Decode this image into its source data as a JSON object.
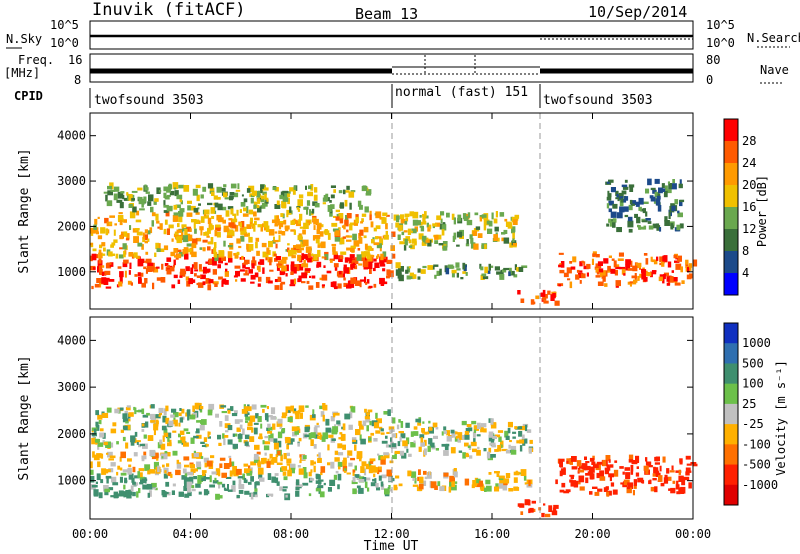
{
  "header": {
    "station": "Inuvik (fitACF)",
    "beam": "Beam 13",
    "date": "10/Sep/2014"
  },
  "nsky_panel": {
    "left_label": "N.Sky",
    "right_label": "N.Search",
    "left_ticks": [
      "10^5",
      "10^0"
    ],
    "right_ticks": [
      "10^5",
      "10^0"
    ]
  },
  "freq_panel": {
    "left_label_top": "Freq.",
    "left_label_bottom": "[MHz]",
    "left_ticks": [
      "16",
      "8"
    ],
    "right_ticks": [
      "80",
      "0"
    ],
    "right_label": "Nave"
  },
  "cpid": {
    "label": "CPID",
    "segments": [
      {
        "start": 0,
        "end": 12,
        "label": "twofsound 3503"
      },
      {
        "start": 12,
        "end": 18,
        "label": "normal (fast) 151"
      },
      {
        "start": 18,
        "end": 24,
        "label": "twofsound 3503"
      }
    ]
  },
  "x_axis": {
    "label": "Time UT",
    "ticks": [
      "00:00",
      "04:00",
      "08:00",
      "12:00",
      "16:00",
      "20:00",
      "00:00"
    ],
    "range_hours": [
      0,
      24
    ]
  },
  "chart_data": [
    {
      "type": "heatmap",
      "ylabel": "Slant Range [km]",
      "yticks": [
        "1000",
        "2000",
        "3000",
        "4000"
      ],
      "ylim": [
        180,
        4500
      ],
      "colorbar_label": "Power [dB]",
      "colorbar_ticks": [
        "28",
        "24",
        "20",
        "16",
        "12",
        "8",
        "4"
      ],
      "colorbar_colors": [
        "#ff0000",
        "#ff5a00",
        "#ff9a00",
        "#f0c000",
        "#6aa84f",
        "#3a6f3a",
        "#1c4a8a",
        "#0000ff"
      ],
      "clusters": [
        {
          "t0": 0.0,
          "t1": 12.0,
          "r0": 650,
          "r1": 1350,
          "value": 26
        },
        {
          "t0": 0.0,
          "t1": 12.0,
          "r0": 1300,
          "r1": 2300,
          "value": 18
        },
        {
          "t0": 0.5,
          "t1": 11.0,
          "r0": 2300,
          "r1": 2900,
          "value": 12
        },
        {
          "t0": 12.0,
          "t1": 17.5,
          "r0": 850,
          "r1": 1150,
          "value": 10
        },
        {
          "t0": 12.0,
          "t1": 17.0,
          "r0": 1500,
          "r1": 2300,
          "value": 14
        },
        {
          "t0": 17.0,
          "t1": 18.5,
          "r0": 250,
          "r1": 550,
          "value": 26
        },
        {
          "t0": 18.5,
          "t1": 24.0,
          "r0": 700,
          "r1": 1400,
          "value": 24
        },
        {
          "t0": 20.5,
          "t1": 23.5,
          "r0": 1900,
          "r1": 3000,
          "value": 8
        }
      ]
    },
    {
      "type": "heatmap",
      "ylabel": "Slant Range [km]",
      "yticks": [
        "1000",
        "2000",
        "3000",
        "4000"
      ],
      "ylim": [
        180,
        4500
      ],
      "colorbar_label": "Velocity [m s⁻¹]",
      "colorbar_ticks": [
        "1000",
        "500",
        "100",
        "25",
        "-25",
        "-100",
        "-500",
        "-1000"
      ],
      "colorbar_colors": [
        "#1030c0",
        "#2f6fb0",
        "#3f8f6f",
        "#6cc04a",
        "#c0c0c0",
        "#ffb000",
        "#ff7000",
        "#ff2000",
        "#e00000"
      ],
      "clusters": [
        {
          "t0": 0.0,
          "t1": 12.0,
          "r0": 650,
          "r1": 1100,
          "value": 100
        },
        {
          "t0": 0.0,
          "t1": 12.0,
          "r0": 1100,
          "r1": 1600,
          "value": -100
        },
        {
          "t0": 0.0,
          "t1": 12.0,
          "r0": 1700,
          "r1": 2600,
          "value": 0
        },
        {
          "t0": 12.0,
          "t1": 17.5,
          "r0": 800,
          "r1": 1200,
          "value": -100
        },
        {
          "t0": 12.0,
          "t1": 17.5,
          "r0": 1500,
          "r1": 2300,
          "value": 0
        },
        {
          "t0": 17.0,
          "t1": 18.5,
          "r0": 250,
          "r1": 550,
          "value": -500
        },
        {
          "t0": 18.5,
          "t1": 24.0,
          "r0": 700,
          "r1": 1500,
          "value": -500
        }
      ]
    }
  ]
}
